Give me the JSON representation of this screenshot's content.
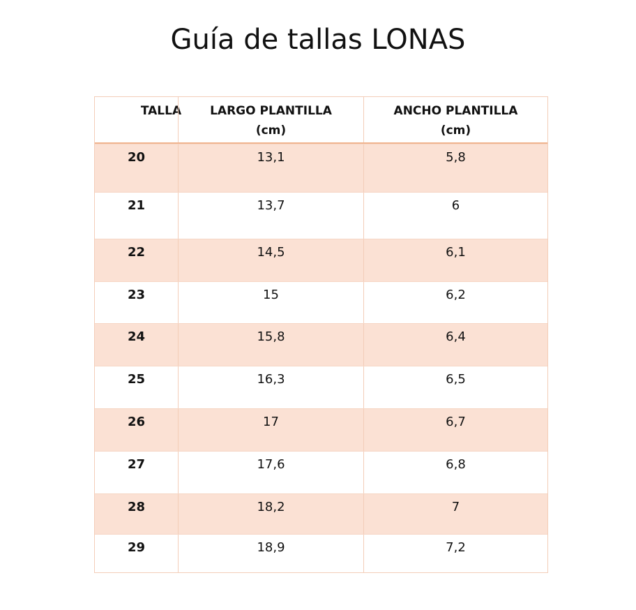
{
  "header": {
    "title": "Guía de tallas LONAS"
  },
  "table": {
    "columns": [
      "TALLA",
      "LARGO PLANTILLA (cm)",
      "ANCHO PLANTILLA (cm)"
    ],
    "rows": [
      [
        "20",
        "13,1",
        "5,8"
      ],
      [
        "21",
        "13,7",
        "6"
      ],
      [
        "22",
        "14,5",
        "6,1"
      ],
      [
        "23",
        "15",
        "6,2"
      ],
      [
        "24",
        "15,8",
        "6,4"
      ],
      [
        "25",
        "16,3",
        "6,5"
      ],
      [
        "26",
        "17",
        "6,7"
      ],
      [
        "27",
        "17,6",
        "6,8"
      ],
      [
        "28",
        "18,2",
        "7"
      ],
      [
        "29",
        "18,9",
        "7,2"
      ]
    ]
  }
}
